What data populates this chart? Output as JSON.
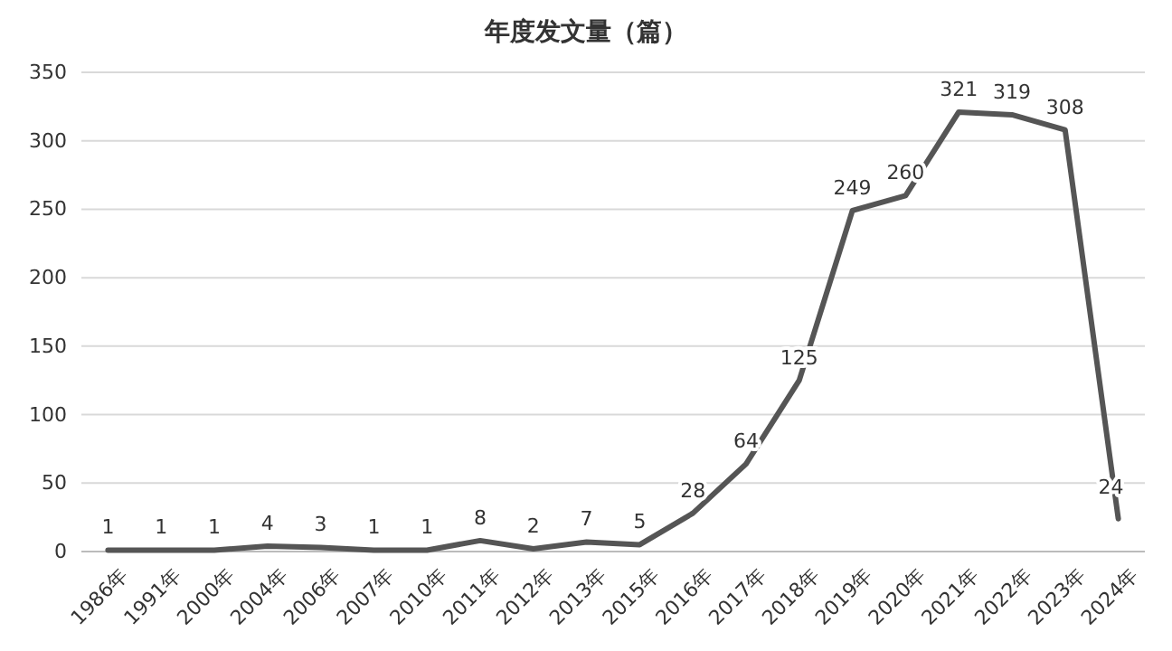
{
  "chart_data": {
    "type": "line",
    "title": "年度发文量（篇）",
    "categories": [
      "1986年",
      "1991年",
      "2000年",
      "2004年",
      "2006年",
      "2007年",
      "2010年",
      "2011年",
      "2012年",
      "2013年",
      "2015年",
      "2016年",
      "2017年",
      "2018年",
      "2019年",
      "2020年",
      "2021年",
      "2022年",
      "2023年",
      "2024年"
    ],
    "series": [
      {
        "color": "#555555",
        "values": [
          1,
          1,
          1,
          4,
          3,
          1,
          1,
          8,
          2,
          7,
          5,
          28,
          64,
          125,
          249,
          260,
          321,
          319,
          308,
          24
        ]
      }
    ],
    "ylim": [
      0,
      350
    ],
    "yticks": [
      0,
      50,
      100,
      150,
      200,
      250,
      300,
      350
    ],
    "grid": "y",
    "data_labels": true,
    "marker": "none",
    "line_style": "solid"
  }
}
